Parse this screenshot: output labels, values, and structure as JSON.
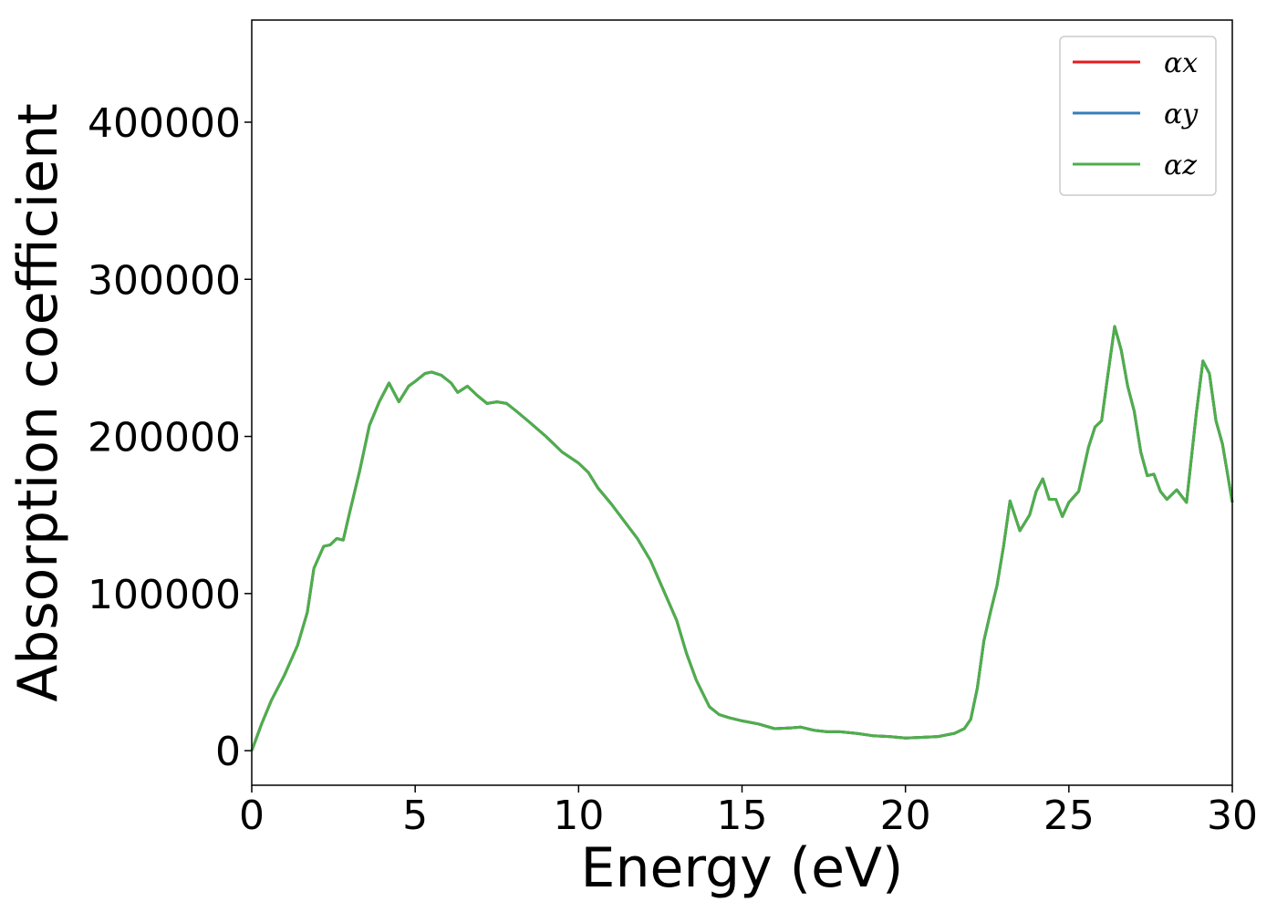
{
  "chart_data": {
    "type": "line",
    "title": "",
    "xlabel": "Energy (eV)",
    "ylabel": "Absorption coefficient",
    "xlim": [
      0,
      30
    ],
    "ylim": [
      -22000,
      465000
    ],
    "xticks": [
      0,
      5,
      10,
      15,
      20,
      25,
      30
    ],
    "yticks": [
      0,
      100000,
      200000,
      300000,
      400000
    ],
    "grid": false,
    "legend_position": "top-right",
    "x": [
      0,
      0.3,
      0.6,
      1.0,
      1.4,
      1.7,
      1.9,
      2.2,
      2.4,
      2.6,
      2.8,
      3.0,
      3.3,
      3.6,
      3.9,
      4.2,
      4.5,
      4.8,
      5.0,
      5.3,
      5.5,
      5.8,
      6.1,
      6.3,
      6.6,
      6.9,
      7.2,
      7.5,
      7.8,
      8.1,
      8.5,
      9.0,
      9.5,
      10.0,
      10.3,
      10.6,
      11.0,
      11.4,
      11.8,
      12.2,
      12.6,
      13.0,
      13.3,
      13.6,
      14.0,
      14.3,
      14.6,
      15.0,
      15.5,
      16.0,
      16.5,
      16.8,
      17.2,
      17.6,
      18.0,
      18.5,
      19.0,
      19.5,
      20.0,
      20.5,
      21.0,
      21.5,
      21.8,
      22.0,
      22.2,
      22.4,
      22.6,
      22.8,
      23.0,
      23.2,
      23.5,
      23.8,
      24.0,
      24.2,
      24.4,
      24.6,
      24.8,
      25.0,
      25.3,
      25.6,
      25.8,
      26.0,
      26.2,
      26.4,
      26.6,
      26.8,
      27.0,
      27.2,
      27.4,
      27.6,
      27.8,
      28.0,
      28.3,
      28.6,
      28.9,
      29.1,
      29.3,
      29.5,
      29.7,
      30.0
    ],
    "series": [
      {
        "name": "αx",
        "color": "#e41a1c",
        "values": [
          0,
          17000,
          32000,
          48000,
          67000,
          88000,
          116000,
          130000,
          131000,
          135000,
          134000,
          152000,
          178000,
          207000,
          222000,
          234000,
          222000,
          232000,
          235000,
          240000,
          241000,
          239000,
          234000,
          228000,
          232000,
          226000,
          221000,
          222000,
          221000,
          216000,
          209000,
          200000,
          190000,
          183000,
          177000,
          167000,
          157000,
          146000,
          135000,
          121000,
          102000,
          83000,
          62000,
          45000,
          28000,
          23000,
          21000,
          19000,
          17000,
          14000,
          14500,
          15000,
          13000,
          12000,
          12000,
          11000,
          9500,
          9000,
          8000,
          8500,
          9000,
          11000,
          14000,
          20000,
          40000,
          70000,
          88000,
          105000,
          130000,
          159000,
          140000,
          150000,
          165000,
          173000,
          160000,
          160000,
          149000,
          158000,
          165000,
          193000,
          206000,
          210000,
          240000,
          270000,
          255000,
          232000,
          216000,
          190000,
          175000,
          176000,
          165000,
          160000,
          166000,
          158000,
          215000,
          248000,
          240000,
          210000,
          195000,
          158000
        ]
      },
      {
        "name": "αy",
        "color": "#377eb8",
        "values": [
          0,
          17000,
          32000,
          48000,
          67000,
          88000,
          116000,
          130000,
          131000,
          135000,
          134000,
          152000,
          178000,
          207000,
          222000,
          234000,
          222000,
          232000,
          235000,
          240000,
          241000,
          239000,
          234000,
          228000,
          232000,
          226000,
          221000,
          222000,
          221000,
          216000,
          209000,
          200000,
          190000,
          183000,
          177000,
          167000,
          157000,
          146000,
          135000,
          121000,
          102000,
          83000,
          62000,
          45000,
          28000,
          23000,
          21000,
          19000,
          17000,
          14000,
          14500,
          15000,
          13000,
          12000,
          12000,
          11000,
          9500,
          9000,
          8000,
          8500,
          9000,
          11000,
          14000,
          20000,
          40000,
          70000,
          88000,
          105000,
          130000,
          159000,
          140000,
          150000,
          165000,
          173000,
          160000,
          160000,
          149000,
          158000,
          165000,
          193000,
          206000,
          210000,
          240000,
          270000,
          255000,
          232000,
          216000,
          190000,
          175000,
          176000,
          165000,
          160000,
          166000,
          158000,
          215000,
          248000,
          240000,
          210000,
          195000,
          158000
        ]
      },
      {
        "name": "αz",
        "color": "#4daf4a",
        "values": [
          0,
          17000,
          32000,
          48000,
          67000,
          88000,
          116000,
          130000,
          131000,
          135000,
          134000,
          152000,
          178000,
          207000,
          222000,
          234000,
          222000,
          232000,
          235000,
          240000,
          241000,
          239000,
          234000,
          228000,
          232000,
          226000,
          221000,
          222000,
          221000,
          216000,
          209000,
          200000,
          190000,
          183000,
          177000,
          167000,
          157000,
          146000,
          135000,
          121000,
          102000,
          83000,
          62000,
          45000,
          28000,
          23000,
          21000,
          19000,
          17000,
          14000,
          14500,
          15000,
          13000,
          12000,
          12000,
          11000,
          9500,
          9000,
          8000,
          8500,
          9000,
          11000,
          14000,
          20000,
          40000,
          70000,
          88000,
          105000,
          130000,
          159000,
          140000,
          150000,
          165000,
          173000,
          160000,
          160000,
          149000,
          158000,
          165000,
          193000,
          206000,
          210000,
          240000,
          270000,
          255000,
          232000,
          216000,
          190000,
          175000,
          176000,
          165000,
          160000,
          166000,
          158000,
          215000,
          248000,
          240000,
          210000,
          195000,
          158000
        ]
      }
    ]
  }
}
